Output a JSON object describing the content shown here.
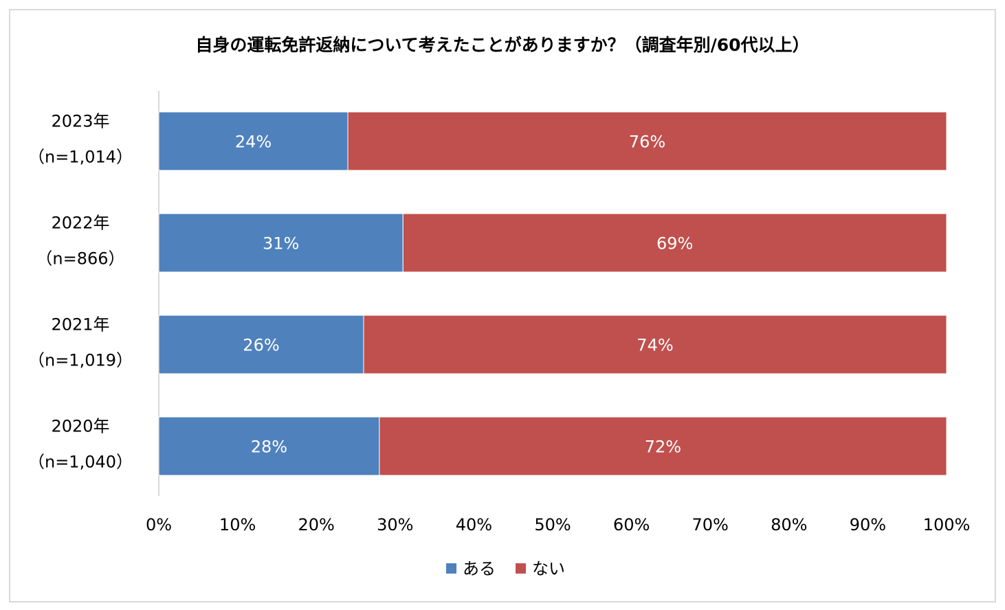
{
  "chart_data": {
    "type": "bar",
    "orientation": "horizontal",
    "stacked": true,
    "title": "自身の運転免許返納について考えたことがありますか？（調査年別/60代以上）",
    "categories": [
      {
        "year": "2023年",
        "n": "（n=1,014）"
      },
      {
        "year": "2022年",
        "n": "（n=866）"
      },
      {
        "year": "2021年",
        "n": "（n=1,019）"
      },
      {
        "year": "2020年",
        "n": "（n=1,040）"
      }
    ],
    "series": [
      {
        "name": "ある",
        "color": "#4F81BD",
        "values": [
          24,
          31,
          26,
          28
        ]
      },
      {
        "name": "ない",
        "color": "#C0504D",
        "values": [
          76,
          69,
          74,
          72
        ]
      }
    ],
    "value_suffix": "%",
    "xlim": [
      0,
      100
    ],
    "x_ticks": [
      "0%",
      "10%",
      "20%",
      "30%",
      "40%",
      "50%",
      "60%",
      "70%",
      "80%",
      "90%",
      "100%"
    ],
    "grid": false,
    "legend_position": "bottom"
  }
}
